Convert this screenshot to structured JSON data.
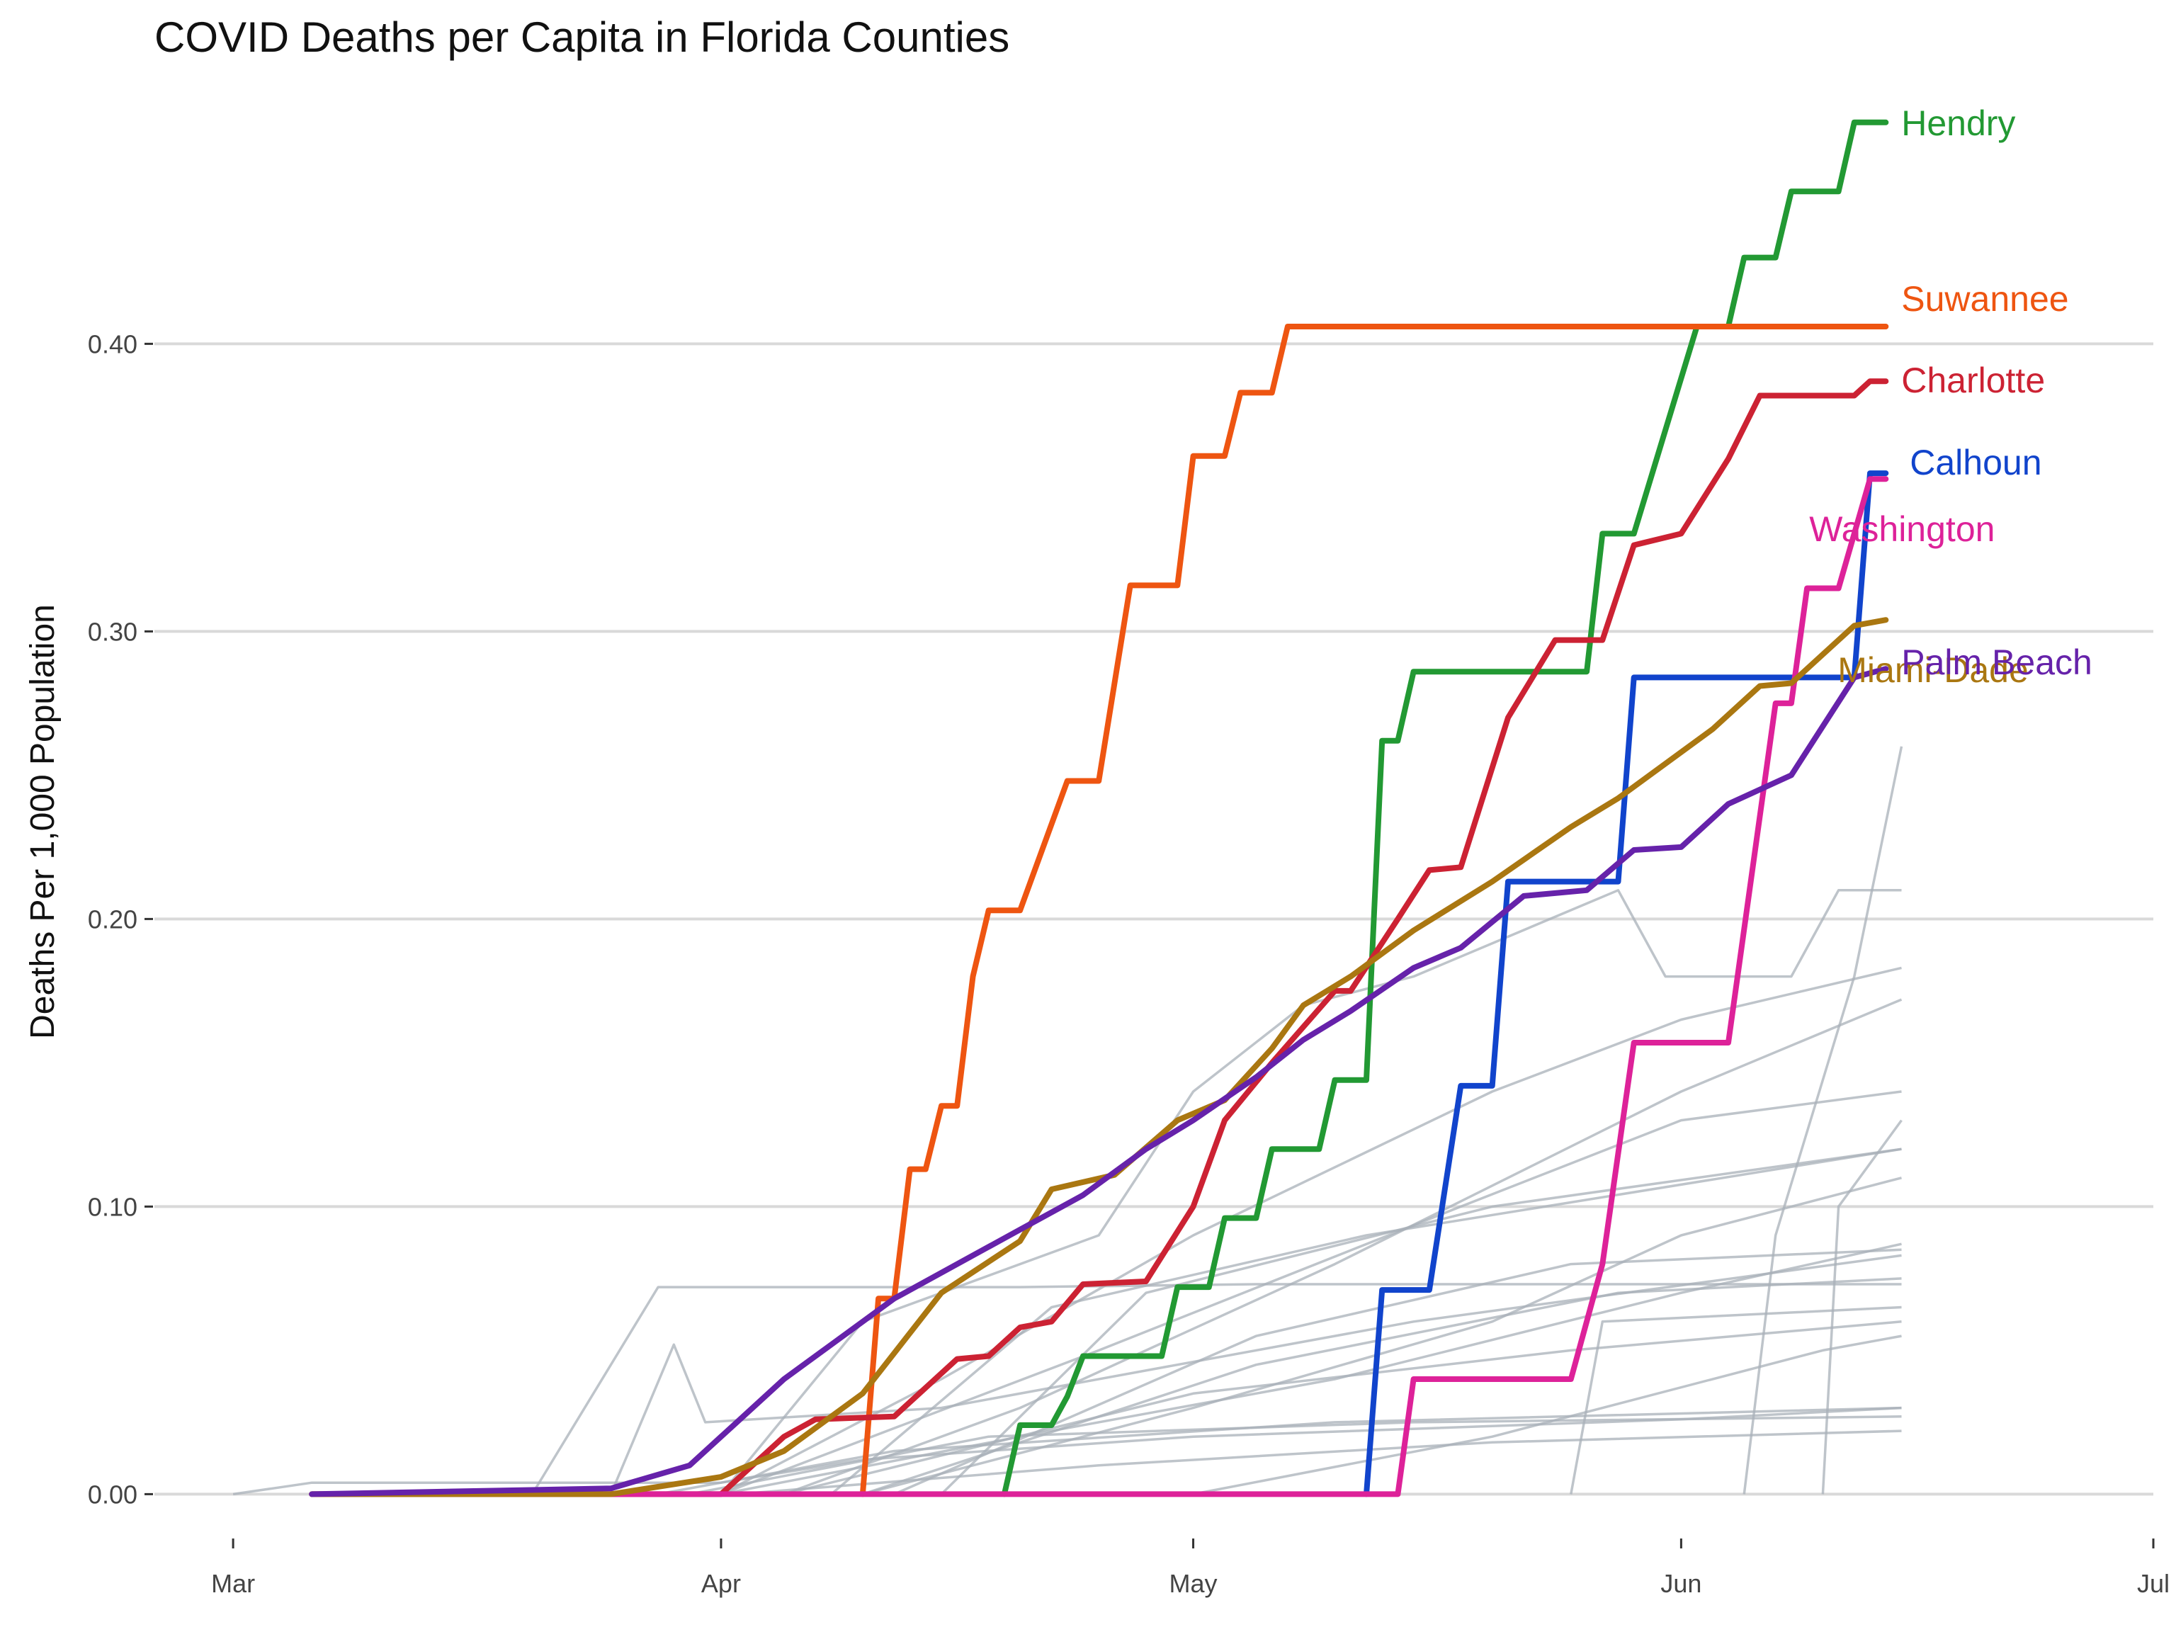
{
  "chart_data": {
    "type": "line",
    "title": "COVID Deaths per Capita in Florida Counties",
    "xlabel": "",
    "ylabel": "Deaths Per 1,000 Population",
    "x_ticks": [
      "Mar",
      "Apr",
      "May",
      "Jun",
      "Jul"
    ],
    "x_tick_dates": [
      "2020-03-01",
      "2020-04-01",
      "2020-05-01",
      "2020-06-01",
      "2020-07-01"
    ],
    "xlim": [
      "2020-02-25",
      "2020-07-01"
    ],
    "y_ticks": [
      "0.00",
      "0.10",
      "0.20",
      "0.30",
      "0.40"
    ],
    "ylim": [
      -0.01,
      0.49
    ],
    "grid": "horizontal",
    "legend": "direct labels at line ends (right)",
    "background_series": [
      {
        "values": [
          [
            "2020-03-01",
            0
          ],
          [
            "2020-03-06",
            0.004
          ],
          [
            "2020-04-01",
            0.004
          ],
          [
            "2020-04-10",
            0.012
          ],
          [
            "2020-05-01",
            0.02
          ],
          [
            "2020-06-01",
            0.026
          ],
          [
            "2020-06-15",
            0.03
          ]
        ]
      },
      {
        "values": [
          [
            "2020-03-20",
            0
          ],
          [
            "2020-03-28",
            0.072
          ],
          [
            "2020-04-20",
            0.072
          ],
          [
            "2020-05-05",
            0.073
          ],
          [
            "2020-06-15",
            0.073
          ]
        ]
      },
      {
        "values": [
          [
            "2020-03-25",
            0
          ],
          [
            "2020-03-29",
            0.052
          ],
          [
            "2020-03-31",
            0.025
          ],
          [
            "2020-04-15",
            0.03
          ],
          [
            "2020-05-15",
            0.06
          ],
          [
            "2020-06-15",
            0.083
          ]
        ]
      },
      {
        "values": [
          [
            "2020-04-01",
            0
          ],
          [
            "2020-04-10",
            0.06
          ],
          [
            "2020-04-25",
            0.09
          ],
          [
            "2020-05-01",
            0.14
          ],
          [
            "2020-05-08",
            0.17
          ],
          [
            "2020-05-15",
            0.18
          ],
          [
            "2020-05-28",
            0.21
          ],
          [
            "2020-05-31",
            0.18
          ],
          [
            "2020-06-08",
            0.18
          ],
          [
            "2020-06-11",
            0.21
          ],
          [
            "2020-06-15",
            0.21
          ]
        ]
      },
      {
        "values": [
          [
            "2020-04-01",
            0
          ],
          [
            "2020-04-15",
            0.04
          ],
          [
            "2020-05-01",
            0.09
          ],
          [
            "2020-05-20",
            0.14
          ],
          [
            "2020-06-01",
            0.165
          ],
          [
            "2020-06-15",
            0.183
          ]
        ]
      },
      {
        "values": [
          [
            "2020-04-05",
            0
          ],
          [
            "2020-04-20",
            0.03
          ],
          [
            "2020-05-10",
            0.08
          ],
          [
            "2020-06-01",
            0.14
          ],
          [
            "2020-06-15",
            0.172
          ]
        ]
      },
      {
        "values": [
          [
            "2020-04-01",
            0
          ],
          [
            "2020-04-25",
            0.05
          ],
          [
            "2020-05-18",
            0.1
          ],
          [
            "2020-06-01",
            0.13
          ],
          [
            "2020-06-15",
            0.14
          ]
        ]
      },
      {
        "values": [
          [
            "2020-04-08",
            0
          ],
          [
            "2020-04-22",
            0.065
          ],
          [
            "2020-05-12",
            0.09
          ],
          [
            "2020-06-15",
            0.12
          ]
        ]
      },
      {
        "values": [
          [
            "2020-04-10",
            0
          ],
          [
            "2020-05-01",
            0.03
          ],
          [
            "2020-05-20",
            0.06
          ],
          [
            "2020-06-01",
            0.09
          ],
          [
            "2020-06-15",
            0.11
          ]
        ]
      },
      {
        "values": [
          [
            "2020-04-01",
            0
          ],
          [
            "2020-04-20",
            0.02
          ],
          [
            "2020-05-10",
            0.04
          ],
          [
            "2020-06-01",
            0.07
          ],
          [
            "2020-06-15",
            0.087
          ]
        ]
      },
      {
        "values": [
          [
            "2020-03-28",
            0
          ],
          [
            "2020-04-12",
            0.015
          ],
          [
            "2020-05-10",
            0.025
          ],
          [
            "2020-06-15",
            0.03
          ]
        ]
      },
      {
        "values": [
          [
            "2020-03-30",
            0
          ],
          [
            "2020-04-18",
            0.02
          ],
          [
            "2020-05-15",
            0.025
          ],
          [
            "2020-06-15",
            0.027
          ]
        ]
      },
      {
        "values": [
          [
            "2020-04-02",
            0
          ],
          [
            "2020-04-25",
            0.01
          ],
          [
            "2020-05-20",
            0.018
          ],
          [
            "2020-06-15",
            0.022
          ]
        ]
      },
      {
        "values": [
          [
            "2020-04-05",
            0
          ],
          [
            "2020-05-01",
            0.035
          ],
          [
            "2020-05-25",
            0.05
          ],
          [
            "2020-06-15",
            0.06
          ]
        ]
      },
      {
        "values": [
          [
            "2020-04-10",
            0
          ],
          [
            "2020-05-05",
            0.045
          ],
          [
            "2020-05-28",
            0.07
          ],
          [
            "2020-06-15",
            0.075
          ]
        ]
      },
      {
        "values": [
          [
            "2020-04-15",
            0
          ],
          [
            "2020-04-28",
            0.07
          ],
          [
            "2020-05-20",
            0.1
          ],
          [
            "2020-06-15",
            0.12
          ]
        ]
      },
      {
        "values": [
          [
            "2020-04-12",
            0
          ],
          [
            "2020-05-05",
            0.055
          ],
          [
            "2020-05-25",
            0.08
          ],
          [
            "2020-06-15",
            0.085
          ]
        ]
      },
      {
        "values": [
          [
            "2020-05-01",
            0
          ],
          [
            "2020-05-20",
            0.02
          ],
          [
            "2020-06-10",
            0.05
          ],
          [
            "2020-06-15",
            0.055
          ]
        ]
      },
      {
        "values": [
          [
            "2020-05-25",
            0
          ],
          [
            "2020-05-27",
            0.06
          ],
          [
            "2020-06-15",
            0.065
          ]
        ]
      },
      {
        "values": [
          [
            "2020-06-05",
            0
          ],
          [
            "2020-06-07",
            0.09
          ],
          [
            "2020-06-12",
            0.18
          ],
          [
            "2020-06-15",
            0.26
          ]
        ]
      },
      {
        "values": [
          [
            "2020-06-10",
            0
          ],
          [
            "2020-06-11",
            0.1
          ],
          [
            "2020-06-15",
            0.13
          ]
        ]
      }
    ],
    "series": [
      {
        "name": "Hendry",
        "color": "#229933",
        "values": [
          [
            "2020-04-19",
            0
          ],
          [
            "2020-04-20",
            0.024
          ],
          [
            "2020-04-22",
            0.024
          ],
          [
            "2020-04-23",
            0.034
          ],
          [
            "2020-04-24",
            0.048
          ],
          [
            "2020-04-29",
            0.048
          ],
          [
            "2020-04-30",
            0.072
          ],
          [
            "2020-05-02",
            0.072
          ],
          [
            "2020-05-03",
            0.096
          ],
          [
            "2020-05-05",
            0.096
          ],
          [
            "2020-05-06",
            0.12
          ],
          [
            "2020-05-09",
            0.12
          ],
          [
            "2020-05-10",
            0.144
          ],
          [
            "2020-05-12",
            0.144
          ],
          [
            "2020-05-13",
            0.262
          ],
          [
            "2020-05-14",
            0.262
          ],
          [
            "2020-05-15",
            0.286
          ],
          [
            "2020-05-26",
            0.286
          ],
          [
            "2020-05-27",
            0.334
          ],
          [
            "2020-05-29",
            0.334
          ],
          [
            "2020-06-02",
            0.406
          ],
          [
            "2020-06-04",
            0.406
          ],
          [
            "2020-06-05",
            0.43
          ],
          [
            "2020-06-07",
            0.43
          ],
          [
            "2020-06-08",
            0.453
          ],
          [
            "2020-06-11",
            0.453
          ],
          [
            "2020-06-12",
            0.477
          ],
          [
            "2020-06-14",
            0.477
          ]
        ]
      },
      {
        "name": "Suwannee",
        "color": "#ee5511",
        "values": [
          [
            "2020-04-10",
            0
          ],
          [
            "2020-04-11",
            0.068
          ],
          [
            "2020-04-12",
            0.068
          ],
          [
            "2020-04-13",
            0.113
          ],
          [
            "2020-04-14",
            0.113
          ],
          [
            "2020-04-15",
            0.135
          ],
          [
            "2020-04-16",
            0.135
          ],
          [
            "2020-04-17",
            0.18
          ],
          [
            "2020-04-18",
            0.203
          ],
          [
            "2020-04-20",
            0.203
          ],
          [
            "2020-04-23",
            0.248
          ],
          [
            "2020-04-25",
            0.248
          ],
          [
            "2020-04-27",
            0.316
          ],
          [
            "2020-04-30",
            0.316
          ],
          [
            "2020-05-01",
            0.361
          ],
          [
            "2020-05-03",
            0.361
          ],
          [
            "2020-05-04",
            0.383
          ],
          [
            "2020-05-06",
            0.383
          ],
          [
            "2020-05-07",
            0.406
          ],
          [
            "2020-06-14",
            0.406
          ]
        ]
      },
      {
        "name": "Charlotte",
        "color": "#cc2233",
        "values": [
          [
            "2020-03-06",
            0
          ],
          [
            "2020-04-01",
            0
          ],
          [
            "2020-04-05",
            0.02
          ],
          [
            "2020-04-07",
            0.026
          ],
          [
            "2020-04-12",
            0.027
          ],
          [
            "2020-04-16",
            0.047
          ],
          [
            "2020-04-18",
            0.048
          ],
          [
            "2020-04-20",
            0.058
          ],
          [
            "2020-04-22",
            0.06
          ],
          [
            "2020-04-24",
            0.073
          ],
          [
            "2020-04-28",
            0.074
          ],
          [
            "2020-05-01",
            0.1
          ],
          [
            "2020-05-03",
            0.13
          ],
          [
            "2020-05-06",
            0.15
          ],
          [
            "2020-05-10",
            0.175
          ],
          [
            "2020-05-11",
            0.175
          ],
          [
            "2020-05-14",
            0.2
          ],
          [
            "2020-05-16",
            0.217
          ],
          [
            "2020-05-18",
            0.218
          ],
          [
            "2020-05-21",
            0.27
          ],
          [
            "2020-05-24",
            0.297
          ],
          [
            "2020-05-27",
            0.297
          ],
          [
            "2020-05-29",
            0.33
          ],
          [
            "2020-06-01",
            0.334
          ],
          [
            "2020-06-04",
            0.36
          ],
          [
            "2020-06-06",
            0.382
          ],
          [
            "2020-06-12",
            0.382
          ],
          [
            "2020-06-13",
            0.387
          ],
          [
            "2020-06-14",
            0.387
          ]
        ]
      },
      {
        "name": "Calhoun",
        "color": "#1144cc",
        "values": [
          [
            "2020-05-12",
            0
          ],
          [
            "2020-05-13",
            0.071
          ],
          [
            "2020-05-16",
            0.071
          ],
          [
            "2020-05-18",
            0.142
          ],
          [
            "2020-05-20",
            0.142
          ],
          [
            "2020-05-21",
            0.213
          ],
          [
            "2020-05-28",
            0.213
          ],
          [
            "2020-05-29",
            0.284
          ],
          [
            "2020-06-12",
            0.284
          ],
          [
            "2020-06-13",
            0.355
          ],
          [
            "2020-06-14",
            0.355
          ]
        ]
      },
      {
        "name": "Washington",
        "color": "#dd2299",
        "values": [
          [
            "2020-03-24",
            0
          ],
          [
            "2020-05-14",
            0
          ],
          [
            "2020-05-15",
            0.04
          ],
          [
            "2020-05-25",
            0.04
          ],
          [
            "2020-05-27",
            0.08
          ],
          [
            "2020-05-29",
            0.157
          ],
          [
            "2020-06-04",
            0.157
          ],
          [
            "2020-06-07",
            0.275
          ],
          [
            "2020-06-08",
            0.275
          ],
          [
            "2020-06-09",
            0.315
          ],
          [
            "2020-06-11",
            0.315
          ],
          [
            "2020-06-13",
            0.353
          ],
          [
            "2020-06-14",
            0.353
          ]
        ]
      },
      {
        "name": "Miami-Dade",
        "color": "#aa7711",
        "values": [
          [
            "2020-03-06",
            0
          ],
          [
            "2020-03-25",
            0
          ],
          [
            "2020-04-01",
            0.006
          ],
          [
            "2020-04-05",
            0.015
          ],
          [
            "2020-04-10",
            0.035
          ],
          [
            "2020-04-15",
            0.07
          ],
          [
            "2020-04-20",
            0.088
          ],
          [
            "2020-04-22",
            0.106
          ],
          [
            "2020-04-26",
            0.111
          ],
          [
            "2020-04-30",
            0.13
          ],
          [
            "2020-05-03",
            0.137
          ],
          [
            "2020-05-06",
            0.155
          ],
          [
            "2020-05-08",
            0.17
          ],
          [
            "2020-05-11",
            0.18
          ],
          [
            "2020-05-15",
            0.196
          ],
          [
            "2020-05-20",
            0.213
          ],
          [
            "2020-05-25",
            0.232
          ],
          [
            "2020-05-28",
            0.242
          ],
          [
            "2020-06-01",
            0.258
          ],
          [
            "2020-06-03",
            0.266
          ],
          [
            "2020-06-06",
            0.281
          ],
          [
            "2020-06-08",
            0.282
          ],
          [
            "2020-06-12",
            0.302
          ],
          [
            "2020-06-14",
            0.304
          ]
        ]
      },
      {
        "name": "Palm Beach",
        "color": "#6622aa",
        "values": [
          [
            "2020-03-06",
            0
          ],
          [
            "2020-03-25",
            0.002
          ],
          [
            "2020-03-30",
            0.01
          ],
          [
            "2020-04-02",
            0.025
          ],
          [
            "2020-04-05",
            0.04
          ],
          [
            "2020-04-08",
            0.052
          ],
          [
            "2020-04-12",
            0.068
          ],
          [
            "2020-04-16",
            0.08
          ],
          [
            "2020-04-20",
            0.092
          ],
          [
            "2020-04-24",
            0.104
          ],
          [
            "2020-04-28",
            0.12
          ],
          [
            "2020-05-01",
            0.13
          ],
          [
            "2020-05-05",
            0.145
          ],
          [
            "2020-05-08",
            0.158
          ],
          [
            "2020-05-11",
            0.168
          ],
          [
            "2020-05-15",
            0.183
          ],
          [
            "2020-05-18",
            0.19
          ],
          [
            "2020-05-22",
            0.208
          ],
          [
            "2020-05-26",
            0.21
          ],
          [
            "2020-05-29",
            0.224
          ],
          [
            "2020-06-01",
            0.225
          ],
          [
            "2020-06-04",
            0.24
          ],
          [
            "2020-06-08",
            0.25
          ],
          [
            "2020-06-12",
            0.284
          ],
          [
            "2020-06-14",
            0.287
          ]
        ]
      }
    ]
  }
}
